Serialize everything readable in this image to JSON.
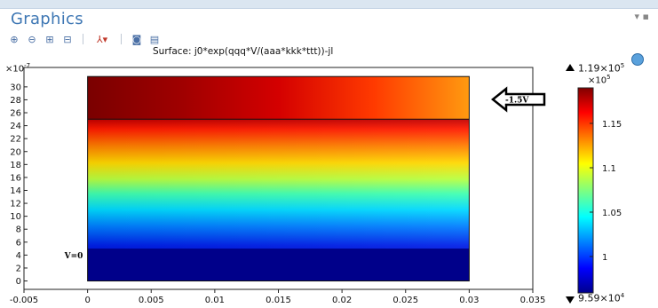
{
  "panel": {
    "title": "Graphics",
    "window_controls": "▾ ▪"
  },
  "toolbar": {
    "items": [
      {
        "icon": "zoom-in-icon",
        "glyph": "⊕"
      },
      {
        "icon": "zoom-out-icon",
        "glyph": "⊖"
      },
      {
        "icon": "zoom-box-icon",
        "glyph": "⊞"
      },
      {
        "icon": "zoom-extents-icon",
        "glyph": "⊟"
      },
      {
        "icon": "axis-orientation-icon",
        "glyph": "⅄▾"
      },
      {
        "icon": "camera-icon",
        "glyph": "◙"
      },
      {
        "icon": "print-icon",
        "glyph": "▤"
      }
    ]
  },
  "plot": {
    "title": "Surface: j0*exp(qqq*V/(aaa*kkk*ttt))-jl",
    "y_scale_mult": "×10",
    "y_scale_exp": "-7",
    "annotations": {
      "bottom_left": "V=0",
      "top_right": "-1.5V"
    }
  },
  "colorbar": {
    "max_mantissa": "1.19×10",
    "max_exp": "5",
    "scale_mult": "×10",
    "scale_exp": "5",
    "min_mantissa": "9.59×10",
    "min_exp": "4",
    "ticks": [
      {
        "value": 1.15,
        "label": "1.15"
      },
      {
        "value": 1.1,
        "label": "1.1"
      },
      {
        "value": 1.05,
        "label": "1.05"
      },
      {
        "value": 1.0,
        "label": "1"
      }
    ],
    "range": [
      0.959,
      1.19
    ],
    "colormap": "jet"
  },
  "chart_data": {
    "type": "heatmap",
    "title": "Surface: j0*exp(qqq*V/(aaa*kkk*ttt))-jl",
    "x_ticks": [
      -0.005,
      0,
      0.005,
      0.01,
      0.015,
      0.02,
      0.025,
      0.03,
      0.035
    ],
    "x_tick_labels": [
      "-0.005",
      "0",
      "0.005",
      "0.01",
      "0.015",
      "0.02",
      "0.025",
      "0.03",
      "0.035"
    ],
    "y_ticks": [
      0,
      2,
      4,
      6,
      8,
      10,
      12,
      14,
      16,
      18,
      20,
      22,
      24,
      26,
      28,
      30
    ],
    "y_tick_labels": [
      "0",
      "2",
      "4",
      "6",
      "8",
      "10",
      "12",
      "14",
      "16",
      "18",
      "20",
      "22",
      "24",
      "26",
      "28",
      "30"
    ],
    "xlim": [
      -0.005,
      0.035
    ],
    "ylim": [
      -1.3,
      33
    ],
    "domain": {
      "x": [
        0,
        0.03
      ],
      "y": [
        0,
        31.6
      ]
    },
    "interface_y": 25,
    "bottom_layer_y": 5,
    "value_range": [
      95900,
      119000
    ],
    "value_unit_exponent": 5
  }
}
